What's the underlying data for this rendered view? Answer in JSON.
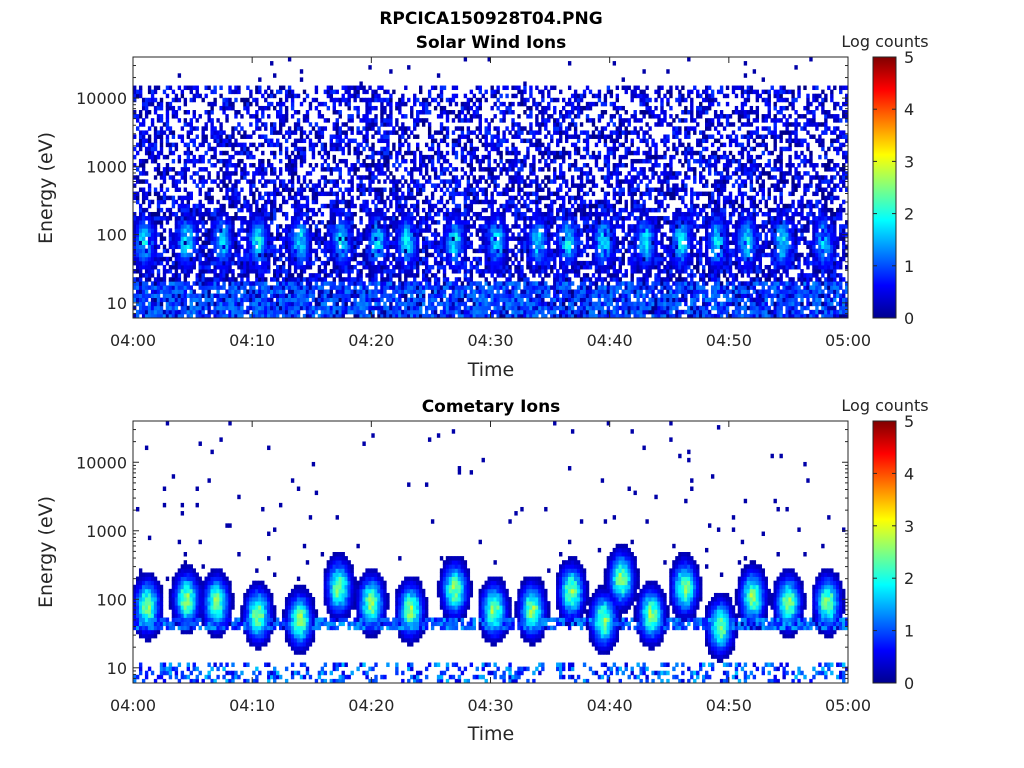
{
  "figure_title": "RPCICA150928T04.PNG",
  "colorbar_colors": [
    "#00008f",
    "#0000ff",
    "#0080ff",
    "#00ffff",
    "#80ff80",
    "#ffff00",
    "#ff8000",
    "#ff0000",
    "#800000"
  ],
  "chart_data": [
    {
      "type": "heatmap",
      "title": "Solar Wind Ions",
      "xlabel": "Time",
      "ylabel": "Energy (eV)",
      "x_range": [
        "04:00",
        "05:00"
      ],
      "x_ticks": [
        "04:00",
        "04:10",
        "04:20",
        "04:30",
        "04:40",
        "04:50",
        "05:00"
      ],
      "y_scale": "log",
      "y_range": [
        6,
        40000
      ],
      "y_ticks": [
        "10",
        "100",
        "1000",
        "10000"
      ],
      "colorbar_label": "Log counts",
      "colorbar_range": [
        0,
        5
      ],
      "colorbar_ticks": [
        "0",
        "1",
        "2",
        "3",
        "4",
        "5"
      ],
      "colormap": "jet",
      "features": {
        "sparse_max_energy_eV": 15000,
        "typical_log_counts": [
          0,
          1.3
        ],
        "peak_log_counts": 2.2,
        "enhancement_minutes": [
          1,
          4.5,
          7.5,
          10.5,
          14,
          17.5,
          20.5,
          23,
          27,
          30.5,
          34,
          36.5,
          39.5,
          43,
          46,
          49,
          51.5,
          54.5,
          58
        ]
      }
    },
    {
      "type": "heatmap",
      "title": "Cometary Ions",
      "xlabel": "Time",
      "ylabel": "Energy (eV)",
      "x_range": [
        "04:00",
        "05:00"
      ],
      "x_ticks": [
        "04:00",
        "04:10",
        "04:20",
        "04:30",
        "04:40",
        "04:50",
        "05:00"
      ],
      "y_scale": "log",
      "y_range": [
        6,
        40000
      ],
      "y_ticks": [
        "10",
        "100",
        "1000",
        "10000"
      ],
      "colorbar_label": "Log counts",
      "colorbar_range": [
        0,
        5
      ],
      "colorbar_ticks": [
        "0",
        "1",
        "2",
        "3",
        "4",
        "5"
      ],
      "colormap": "jet",
      "features": {
        "peak_log_counts": 3.0,
        "burst_minutes": [
          1.2,
          4.5,
          7.0,
          10.5,
          14.0,
          17.3,
          20.0,
          23.3,
          27.0,
          30.3,
          33.5,
          36.8,
          39.5,
          41.0,
          43.5,
          46.3,
          49.3,
          52.0,
          55.0,
          58.3
        ],
        "burst_peak_energy_eV": [
          80,
          100,
          90,
          60,
          50,
          150,
          90,
          70,
          140,
          70,
          70,
          130,
          50,
          200,
          60,
          150,
          40,
          110,
          90,
          90
        ],
        "band_energy_eV": [
          35,
          55
        ]
      }
    }
  ]
}
